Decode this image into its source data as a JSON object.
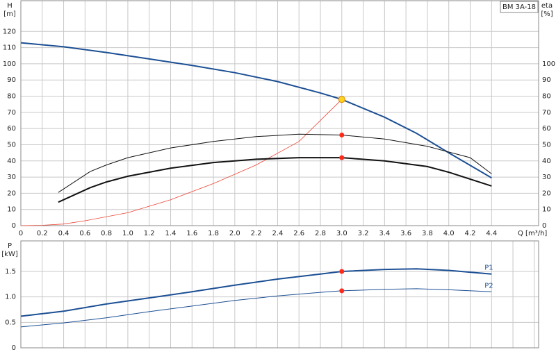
{
  "chart_data": [
    {
      "type": "line",
      "ylabel": [
        "H",
        "[m]"
      ],
      "y2label": [
        "eta",
        "[%]"
      ],
      "xlabel": "Q [m³/h]",
      "annotation": "BM 3A-18",
      "xlim": [
        0,
        4.84
      ],
      "xticks": [
        0,
        0.2,
        0.4,
        0.6,
        0.8,
        {
          "value": 1,
          "label": "1.0"
        },
        1.2,
        1.4,
        1.6,
        1.8,
        {
          "value": 2,
          "label": "2.0"
        },
        2.2,
        2.4,
        2.6,
        2.8,
        {
          "value": 3,
          "label": "3.0"
        },
        3.2,
        3.4,
        3.6,
        3.8,
        {
          "value": 4,
          "label": "4.0"
        },
        4.2,
        4.4
      ],
      "ylim": [
        0,
        139
      ],
      "yticks": [
        0,
        10,
        20,
        30,
        40,
        50,
        60,
        70,
        80,
        90,
        100,
        110,
        120
      ],
      "y2lim": [
        0,
        139
      ],
      "y2ticks": [
        0,
        10,
        20,
        30,
        40,
        50,
        60,
        70,
        80,
        90,
        100
      ],
      "grid": true,
      "series": [
        {
          "color": "#1c4f94",
          "width": 2,
          "x": [
            0,
            0.4,
            0.8,
            1.2,
            1.6,
            2.0,
            2.4,
            2.8,
            3.0,
            3.4,
            3.7,
            4.0,
            4.4
          ],
          "values": [
            113,
            110.5,
            107,
            103,
            99,
            94.5,
            89,
            82,
            78,
            67,
            57,
            45,
            29.5
          ]
        },
        {
          "color": "#ee4433",
          "width": 0.8,
          "x": [
            0,
            0.2,
            0.4,
            0.6,
            1.0,
            1.4,
            1.8,
            2.2,
            2.6,
            3.0
          ],
          "values": [
            0,
            0.2,
            1,
            3,
            8,
            16,
            26,
            37.5,
            52,
            78
          ]
        },
        {
          "color": "#111111",
          "width": 1,
          "axis": "y2",
          "x": [
            0.35,
            0.65,
            0.8,
            1.0,
            1.4,
            1.8,
            2.2,
            2.6,
            3.0,
            3.4,
            3.8,
            4.2,
            4.4
          ],
          "values": [
            20.5,
            33.5,
            37.5,
            42,
            48,
            52,
            55,
            56.5,
            56,
            53.5,
            49,
            42,
            32
          ]
        },
        {
          "color": "#111111",
          "width": 2,
          "axis": "y2",
          "x": [
            0.35,
            0.65,
            0.8,
            1.0,
            1.4,
            1.8,
            2.2,
            2.6,
            3.0,
            3.4,
            3.8,
            4.0,
            4.4
          ],
          "values": [
            14.5,
            23.5,
            27,
            30.5,
            35.5,
            39,
            41,
            42,
            42,
            40,
            36.5,
            33,
            24.5
          ]
        }
      ],
      "points": [
        {
          "x": 3.0,
          "y": 78,
          "color": "#ffd21f"
        },
        {
          "x": 3.0,
          "y": 56,
          "color": "#ff2a1a",
          "axis": "y2"
        },
        {
          "x": 3.0,
          "y": 42,
          "color": "#ff2a1a",
          "axis": "y2"
        }
      ]
    },
    {
      "type": "line",
      "ylabel": [
        "P",
        "[kW]"
      ],
      "xlim": [
        0,
        4.84
      ],
      "xticks": [
        0,
        0.2,
        0.4,
        0.6,
        0.8,
        1,
        1.2,
        1.4,
        1.6,
        1.8,
        2,
        2.2,
        2.4,
        2.6,
        2.8,
        3,
        3.2,
        3.4,
        3.6,
        3.8,
        4,
        4.2,
        4.4,
        4.6,
        4.8
      ],
      "ylim": [
        0,
        2.1
      ],
      "yticks": [
        0,
        0.5,
        {
          "value": 1,
          "label": "1.0"
        },
        1.5
      ],
      "grid": true,
      "series": [
        {
          "name": "P1",
          "color": "#1c4f94",
          "width": 2,
          "x": [
            0,
            0.4,
            0.8,
            1.2,
            1.6,
            2.0,
            2.4,
            2.8,
            3.0,
            3.4,
            3.7,
            4.0,
            4.4
          ],
          "values": [
            0.62,
            0.72,
            0.86,
            0.98,
            1.1,
            1.23,
            1.35,
            1.45,
            1.5,
            1.54,
            1.55,
            1.52,
            1.45
          ]
        },
        {
          "name": "P2",
          "color": "#1c4f94",
          "width": 1,
          "x": [
            0,
            0.4,
            0.8,
            1.2,
            1.6,
            2.0,
            2.4,
            2.8,
            3.0,
            3.4,
            3.7,
            4.0,
            4.4
          ],
          "values": [
            0.41,
            0.49,
            0.59,
            0.71,
            0.82,
            0.93,
            1.02,
            1.09,
            1.12,
            1.15,
            1.16,
            1.14,
            1.1
          ]
        }
      ],
      "points": [
        {
          "x": 3.0,
          "y": 1.5,
          "color": "#ff2a1a"
        },
        {
          "x": 3.0,
          "y": 1.12,
          "color": "#ff2a1a"
        }
      ]
    }
  ]
}
